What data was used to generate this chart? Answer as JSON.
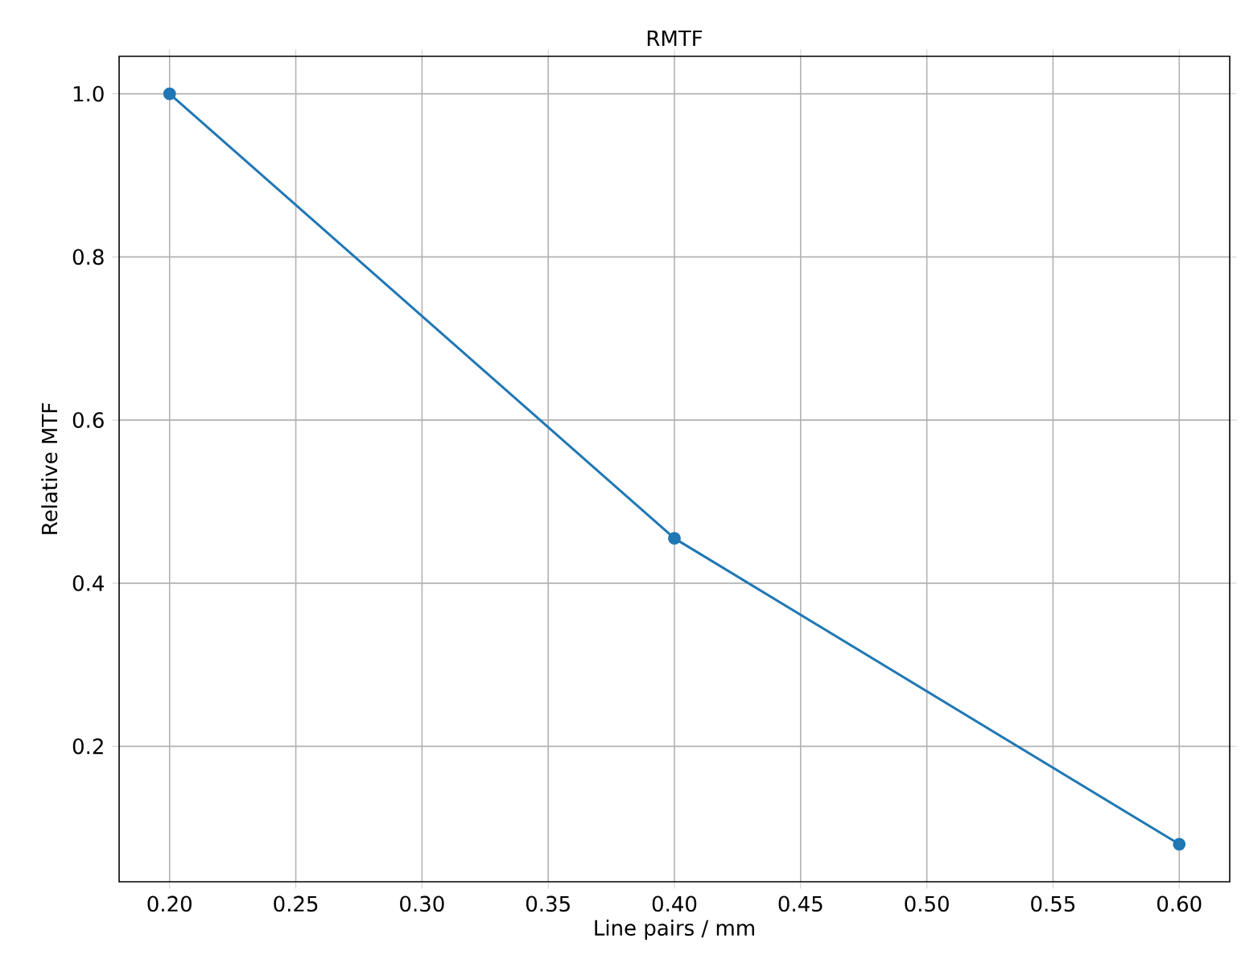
{
  "chart_data": {
    "type": "line",
    "title": "RMTF",
    "xlabel": "Line pairs / mm",
    "ylabel": "Relative MTF",
    "x": [
      0.2,
      0.4,
      0.6
    ],
    "series": [
      {
        "color": "#1f77b4",
        "values": [
          1.0,
          0.455,
          0.08
        ]
      }
    ],
    "xlim": [
      0.18,
      0.62
    ],
    "ylim": [
      0.034,
      1.046
    ],
    "xticks": [
      {
        "value": 0.2,
        "label": "0.20"
      },
      {
        "value": 0.25,
        "label": "0.25"
      },
      {
        "value": 0.3,
        "label": "0.30"
      },
      {
        "value": 0.35,
        "label": "0.35"
      },
      {
        "value": 0.4,
        "label": "0.40"
      },
      {
        "value": 0.45,
        "label": "0.45"
      },
      {
        "value": 0.5,
        "label": "0.50"
      },
      {
        "value": 0.55,
        "label": "0.55"
      },
      {
        "value": 0.6,
        "label": "0.60"
      }
    ],
    "yticks": [
      {
        "value": 0.2,
        "label": "0.2"
      },
      {
        "value": 0.4,
        "label": "0.4"
      },
      {
        "value": 0.6,
        "label": "0.6"
      },
      {
        "value": 0.8,
        "label": "0.8"
      },
      {
        "value": 1.0,
        "label": "1.0"
      }
    ],
    "grid": true,
    "marker": "circle",
    "line_style": "solid"
  }
}
